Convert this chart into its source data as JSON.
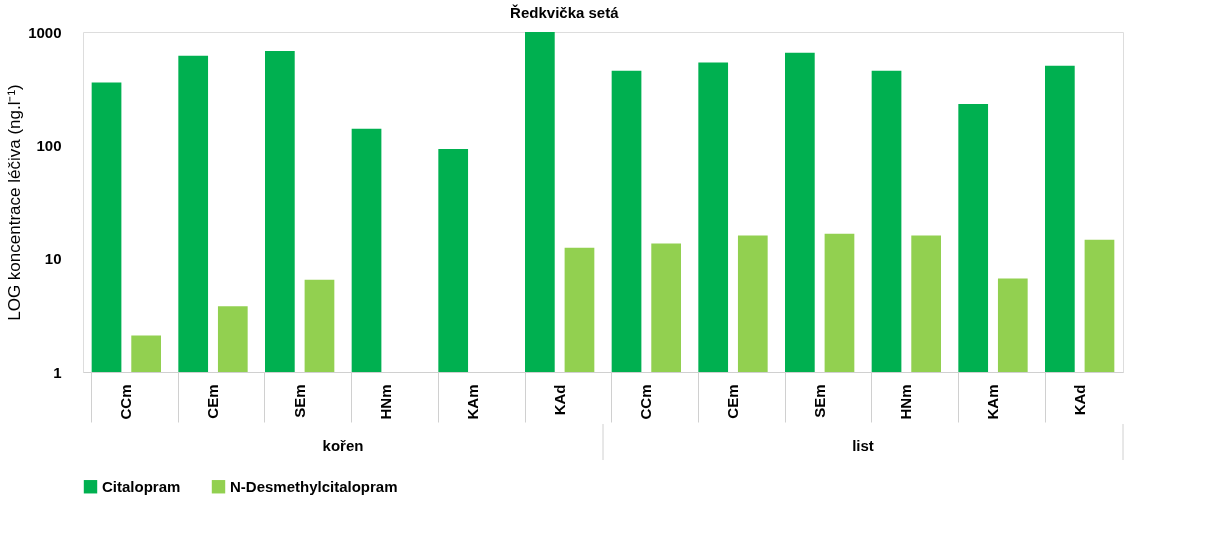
{
  "chart_data": {
    "type": "bar",
    "title": "Ředkvička setá",
    "ylabel": "LOG koncentrace léčiva (ng.l⁻¹)",
    "categories": [
      "CCm",
      "CEm",
      "SEm",
      "HNm",
      "KAm",
      "KAd",
      "CCm",
      "CEm",
      "SEm",
      "HNm",
      "KAm",
      "KAd"
    ],
    "annotations": [
      "kořen",
      "list"
    ],
    "series": [
      {
        "name": "Citalopram",
        "color": "#00b050",
        "values": [
          359,
          617,
          681,
          140,
          93,
          1000,
          455,
          537,
          655,
          455,
          231,
          505
        ]
      },
      {
        "name": "N-Desmethylcitalopram",
        "color": "#92d050",
        "values": [
          2.1,
          3.8,
          6.5,
          null,
          null,
          12.5,
          13.6,
          16,
          16.6,
          16,
          6.7,
          14.7
        ]
      }
    ],
    "log": true,
    "ylim": [
      1,
      1000
    ],
    "yticks": [
      1,
      10,
      100,
      1000
    ],
    "grid": false,
    "legend": "bottom"
  }
}
